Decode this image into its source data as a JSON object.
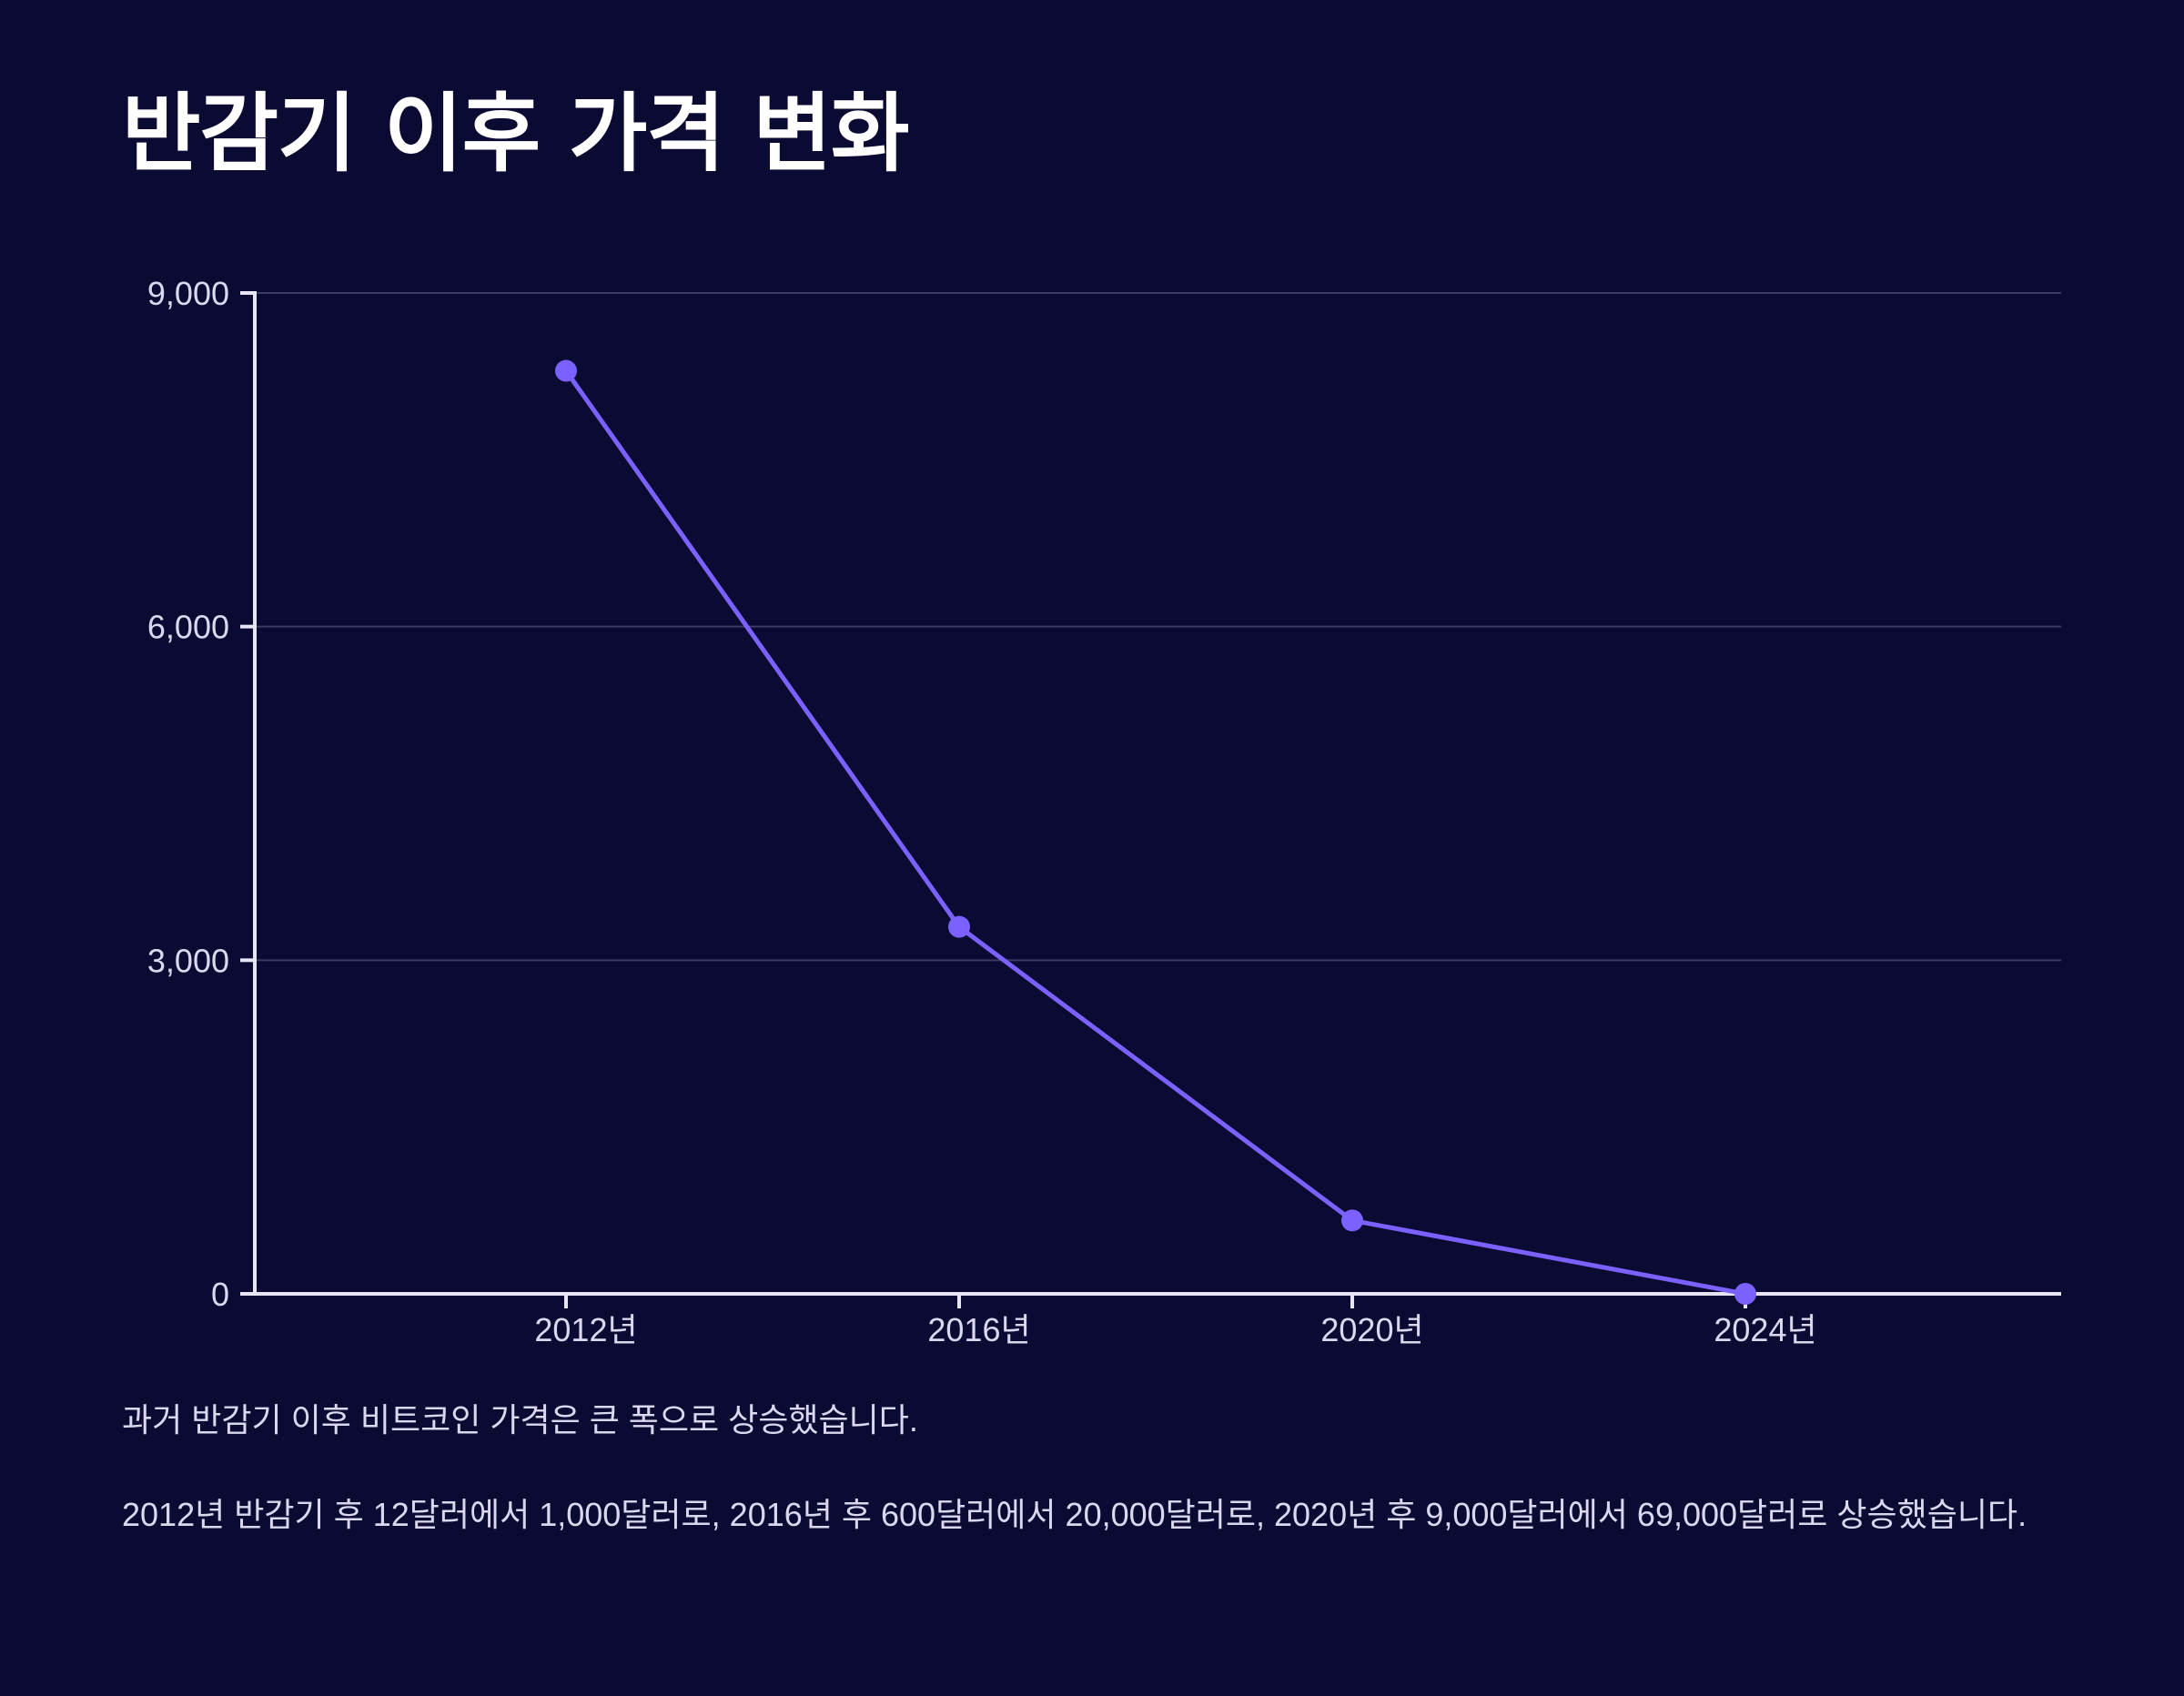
{
  "chart_data": {
    "type": "line",
    "title": "반감기 이후 가격 변화",
    "categories": [
      "2012년",
      "2016년",
      "2020년",
      "2024년"
    ],
    "series": [
      {
        "values": [
          8300,
          3300,
          660,
          0
        ]
      }
    ],
    "ylim": [
      0,
      9000
    ],
    "yticks": [
      0,
      3000,
      6000,
      9000
    ],
    "ytick_labels": [
      "0",
      "3,000",
      "6,000",
      "9,000"
    ],
    "grid": true,
    "xlabel": "",
    "ylabel": ""
  },
  "colors": {
    "background": "#0b0a33",
    "line": "#7b61ff",
    "grid": "#3c3b63",
    "axis": "#e6e5f5"
  },
  "notes": [
    "과거 반감기 이후 비트코인 가격은 큰 폭으로 상승했습니다.",
    "2012년 반감기 후 12달러에서 1,000달러로, 2016년 후 600달러에서 20,000달러로, 2020년 후 9,000달러에서 69,000달러로 상승했습니다."
  ]
}
